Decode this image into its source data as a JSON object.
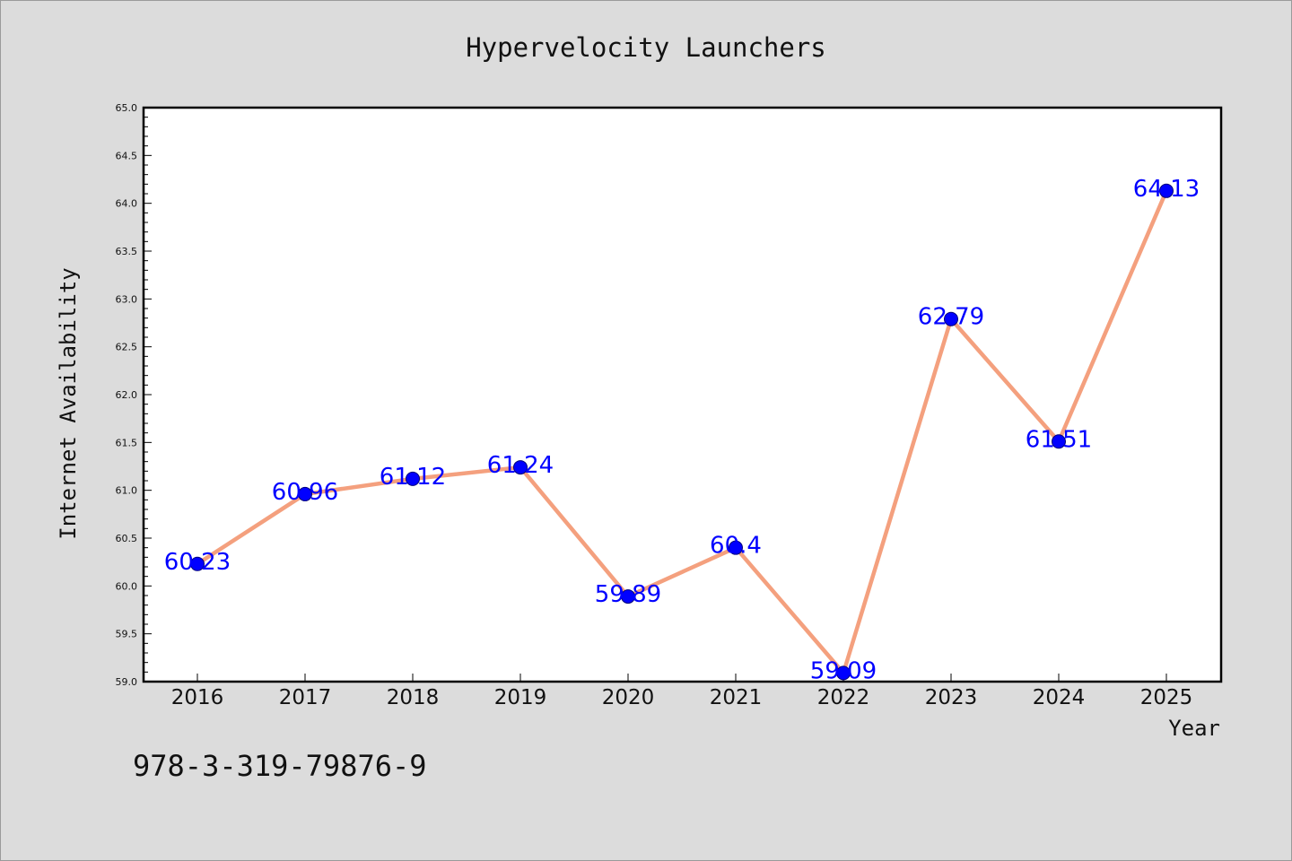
{
  "chart_data": {
    "type": "line",
    "title": "Hypervelocity Launchers",
    "xlabel": "Year",
    "ylabel": "Internet Availability",
    "categories": [
      "2016",
      "2017",
      "2018",
      "2019",
      "2020",
      "2021",
      "2022",
      "2023",
      "2024",
      "2025"
    ],
    "values": [
      60.23,
      60.96,
      61.12,
      61.24,
      59.89,
      60.4,
      59.09,
      62.79,
      61.51,
      64.13
    ],
    "data_labels": [
      "60.23",
      "60.96",
      "61.12",
      "61.24",
      "59.89",
      "60.4",
      "59.09",
      "62.79",
      "61.51",
      "64.13"
    ],
    "ylim": [
      59.0,
      65.0
    ],
    "yticks": [
      "59.0",
      "59.5",
      "60.0",
      "60.5",
      "61.0",
      "61.5",
      "62.0",
      "62.5",
      "63.0",
      "63.5",
      "64.0",
      "64.5",
      "65.0"
    ],
    "grid": false,
    "legend": "none",
    "colors": {
      "line": "#f4a07e",
      "marker": "#0000ff",
      "data_label": "#0000ff",
      "background": "#dcdcdc",
      "plot_background": "#ffffff"
    }
  },
  "footnote": "978-3-319-79876-9"
}
